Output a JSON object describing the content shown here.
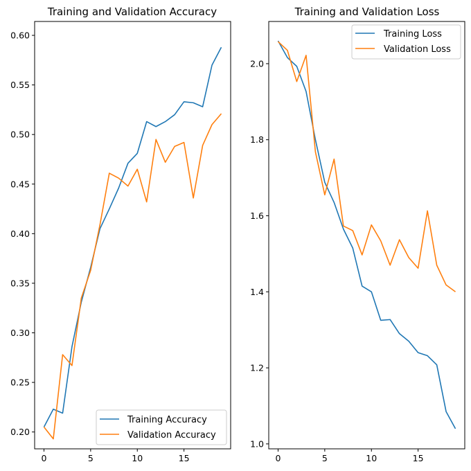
{
  "chart_data": [
    {
      "type": "line",
      "title": "Training and Validation Accuracy",
      "xlabel": "",
      "ylabel": "",
      "xlim": [
        -1,
        20
      ],
      "ylim": [
        0.183,
        0.614
      ],
      "x_ticks": [
        0,
        5,
        10,
        15
      ],
      "y_ticks": [
        0.2,
        0.25,
        0.3,
        0.35,
        0.4,
        0.45,
        0.5,
        0.55,
        0.6
      ],
      "y_tick_labels": [
        "0.20",
        "0.25",
        "0.30",
        "0.35",
        "0.40",
        "0.45",
        "0.50",
        "0.55",
        "0.60"
      ],
      "grid": false,
      "legend": "lower-right",
      "x": [
        0,
        1,
        2,
        3,
        4,
        5,
        6,
        7,
        8,
        9,
        10,
        11,
        12,
        13,
        14,
        15,
        16,
        17,
        18,
        19
      ],
      "series": [
        {
          "name": "Training Accuracy",
          "color": "#1f77b4",
          "values": [
            0.205,
            0.223,
            0.219,
            0.286,
            0.331,
            0.366,
            0.405,
            0.425,
            0.446,
            0.471,
            0.481,
            0.513,
            0.508,
            0.513,
            0.52,
            0.533,
            0.532,
            0.528,
            0.57,
            0.588
          ]
        },
        {
          "name": "Validation Accuracy",
          "color": "#ff7f0e",
          "values": [
            0.205,
            0.193,
            0.278,
            0.267,
            0.335,
            0.363,
            0.409,
            0.461,
            0.456,
            0.448,
            0.465,
            0.432,
            0.495,
            0.472,
            0.488,
            0.492,
            0.436,
            0.489,
            0.51,
            0.521
          ]
        }
      ]
    },
    {
      "type": "line",
      "title": "Training and Validation Loss",
      "xlabel": "",
      "ylabel": "",
      "xlim": [
        -1,
        20
      ],
      "ylim": [
        0.987,
        2.111
      ],
      "x_ticks": [
        0,
        5,
        10,
        15
      ],
      "y_ticks": [
        1.0,
        1.2,
        1.4,
        1.6,
        1.8,
        2.0
      ],
      "y_tick_labels": [
        "1.0",
        "1.2",
        "1.4",
        "1.6",
        "1.8",
        "2.0"
      ],
      "grid": false,
      "legend": "upper-right",
      "x": [
        0,
        1,
        2,
        3,
        4,
        5,
        6,
        7,
        8,
        9,
        10,
        11,
        12,
        13,
        14,
        15,
        16,
        17,
        18,
        19
      ],
      "series": [
        {
          "name": "Training Loss",
          "color": "#1f77b4",
          "values": [
            2.06,
            2.016,
            1.993,
            1.927,
            1.8,
            1.688,
            1.635,
            1.565,
            1.515,
            1.415,
            1.4,
            1.325,
            1.327,
            1.29,
            1.27,
            1.24,
            1.232,
            1.208,
            1.085,
            1.04
          ]
        },
        {
          "name": "Validation Loss",
          "color": "#ff7f0e",
          "values": [
            2.058,
            2.035,
            1.953,
            2.022,
            1.768,
            1.655,
            1.749,
            1.573,
            1.561,
            1.497,
            1.576,
            1.534,
            1.47,
            1.537,
            1.49,
            1.462,
            1.613,
            1.47,
            1.418,
            1.4
          ]
        }
      ]
    }
  ]
}
